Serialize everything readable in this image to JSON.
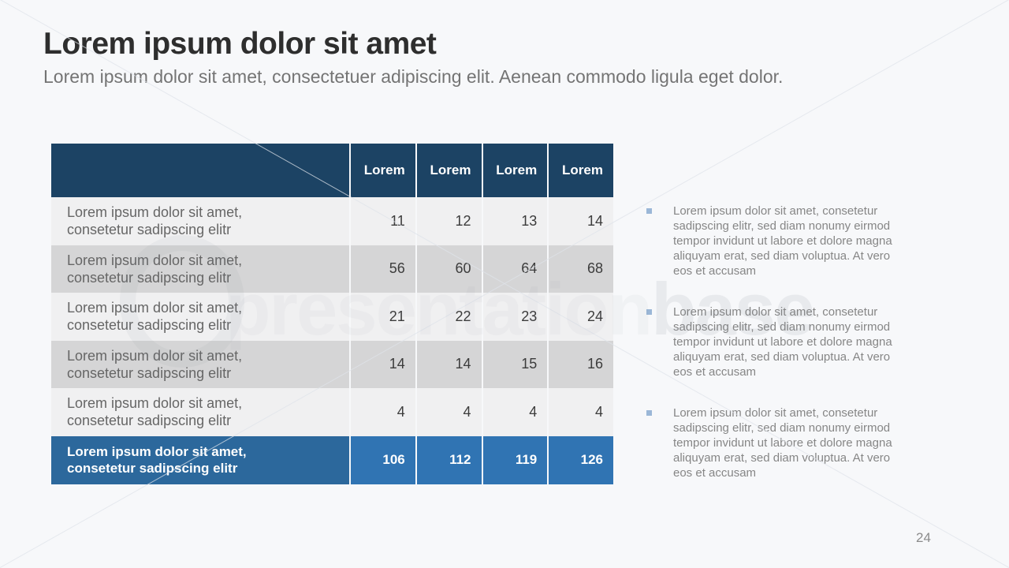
{
  "slide": {
    "title": "Lorem ipsum dolor sit amet",
    "subtitle": "Lorem ipsum dolor sit amet, consectetuer adipiscing elit. Aenean commodo ligula eget dolor.",
    "page_number": "24"
  },
  "table": {
    "columns": [
      "Lorem",
      "Lorem",
      "Lorem",
      "Lorem"
    ],
    "rows": [
      {
        "label_line1": "Lorem ipsum dolor sit amet,",
        "label_line2": "consetetur sadipscing elitr",
        "values": [
          "11",
          "12",
          "13",
          "14"
        ]
      },
      {
        "label_line1": "Lorem ipsum dolor sit amet,",
        "label_line2": "consetetur sadipscing elitr",
        "values": [
          "56",
          "60",
          "64",
          "68"
        ]
      },
      {
        "label_line1": "Lorem ipsum dolor sit amet,",
        "label_line2": "consetetur sadipscing elitr",
        "values": [
          "21",
          "22",
          "23",
          "24"
        ]
      },
      {
        "label_line1": "Lorem ipsum dolor sit amet,",
        "label_line2": "consetetur sadipscing elitr",
        "values": [
          "14",
          "14",
          "15",
          "16"
        ]
      },
      {
        "label_line1": "Lorem ipsum dolor sit amet,",
        "label_line2": "consetetur sadipscing elitr",
        "values": [
          "4",
          "4",
          "4",
          "4"
        ]
      }
    ],
    "total": {
      "label_line1": "Lorem ipsum dolor sit amet,",
      "label_line2": "consetetur sadipscing elitr",
      "values": [
        "106",
        "112",
        "119",
        "126"
      ]
    }
  },
  "bullets": [
    "Lorem ipsum dolor sit amet, consetetur sadipscing elitr, sed diam nonumy eirmod tempor invidunt ut labore et dolore magna aliquyam erat, sed diam voluptua. At vero eos et accusam",
    "Lorem ipsum dolor sit amet, consetetur sadipscing elitr, sed diam nonumy eirmod tempor invidunt ut labore et dolore magna aliquyam erat, sed diam voluptua. At vero eos et accusam",
    "Lorem ipsum dolor sit amet, consetetur sadipscing elitr, sed diam nonumy eirmod tempor invidunt ut labore et dolore magna aliquyam erat, sed diam voluptua. At vero eos et accusam"
  ],
  "watermark": {
    "text_light": "presentation",
    "text_bold": "base"
  },
  "colors": {
    "slide_background": "#f7f8fa",
    "table_header_bg": "#1c4364",
    "row_light_bg": "#f0f0f1",
    "row_dark_bg": "#d5d5d6",
    "total_label_bg": "#2c689c",
    "total_value_bg": "#3074b3",
    "bullet_square": "#9bb7d7",
    "title_text": "#2e2e2e",
    "body_text": "#666666"
  }
}
